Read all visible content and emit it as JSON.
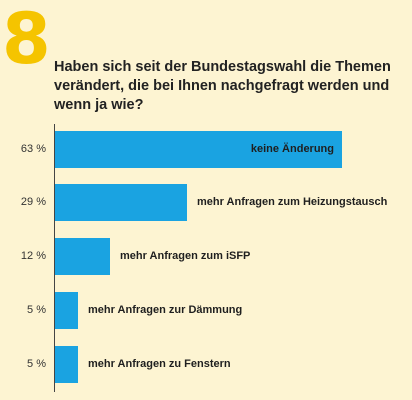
{
  "header": {
    "number": "8",
    "question": "Haben sich seit der Bundestagswahl die Themen verändert, die bei Ihnen nachgefragt werden und wenn ja wie?"
  },
  "colors": {
    "background": "#fdf4d2",
    "accent_number": "#f5c400",
    "bar": "#1aa3e1"
  },
  "chart_data": {
    "type": "bar",
    "orientation": "horizontal",
    "categories": [
      "keine Änderung",
      "mehr Anfragen zum Heizungstausch",
      "mehr Anfragen zum iSFP",
      "mehr Anfragen zur Dämmung",
      "mehr Anfragen zu Fenstern"
    ],
    "values": [
      63,
      29,
      12,
      5,
      5
    ],
    "value_labels": [
      "63 %",
      "29 %",
      "12 %",
      "5 %",
      "5 %"
    ],
    "xlim": [
      0,
      63
    ],
    "grid": false
  }
}
